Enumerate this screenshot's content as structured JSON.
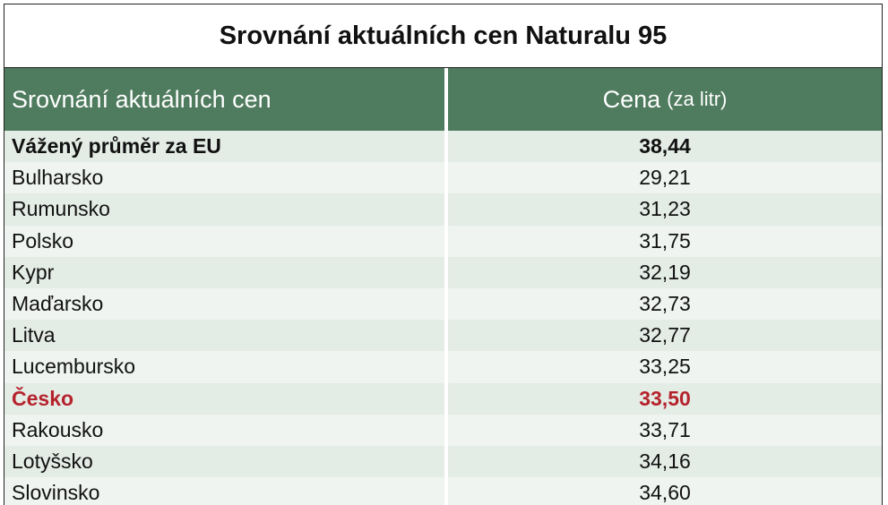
{
  "header": {
    "title": "Srovnání aktuálních cen Naturalu 95"
  },
  "table": {
    "columns": [
      "Srovnání aktuálních cen",
      "Cena",
      "(za litr)"
    ],
    "rows": [
      [
        "Vážený průměr za EU",
        "38,44"
      ],
      [
        "Bulharsko",
        "29,21"
      ],
      [
        "Rumunsko",
        "31,23"
      ],
      [
        "Polsko",
        "31,75"
      ],
      [
        "Kypr",
        "32,19"
      ],
      [
        "Maďarsko",
        "32,73"
      ],
      [
        "Litva",
        "32,77"
      ],
      [
        "Lucembursko",
        "33,25"
      ],
      [
        "Česko",
        "33,50"
      ],
      [
        "Rakousko",
        "33,71"
      ],
      [
        "Lotyšsko",
        "34,16"
      ],
      [
        "Slovinsko",
        "34,60"
      ]
    ]
  }
}
